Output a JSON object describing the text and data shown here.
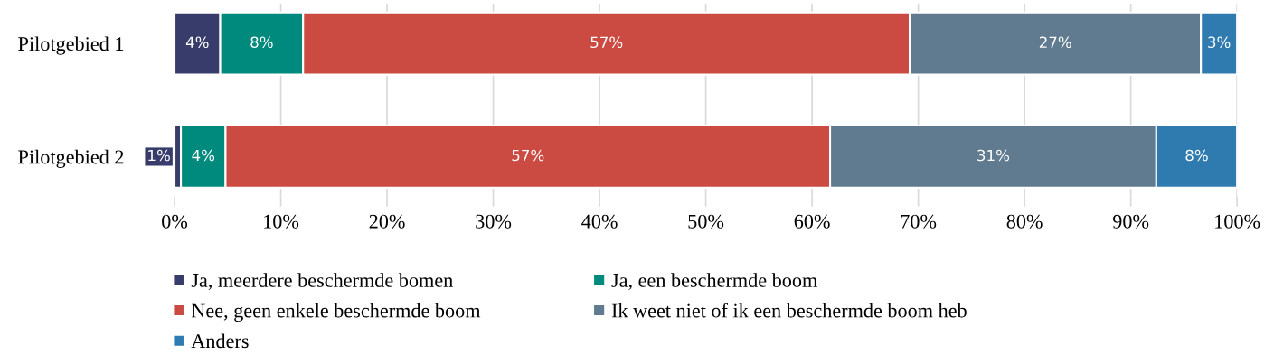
{
  "chart_data": {
    "type": "bar",
    "orientation": "horizontal",
    "stacked": true,
    "categories": [
      "Pilotgebied 1",
      "Pilotgebied 2"
    ],
    "series": [
      {
        "name": "Ja, meerdere beschermde bomen",
        "color": "#383c6a",
        "values": [
          4.3,
          0.6
        ],
        "value_labels": [
          "4%",
          "1%"
        ]
      },
      {
        "name": "Ja, een beschermde boom",
        "color": "#008a7d",
        "values": [
          7.8,
          4.2
        ],
        "value_labels": [
          "8%",
          "4%"
        ]
      },
      {
        "name": "Nee, geen enkele beschermde boom",
        "color": "#cb4b43",
        "values": [
          57.1,
          56.9
        ],
        "value_labels": [
          "57%",
          "57%"
        ]
      },
      {
        "name": "Ik weet niet of ik een beschermde boom heb",
        "color": "#607b8f",
        "values": [
          27.4,
          30.7
        ],
        "value_labels": [
          "27%",
          "31%"
        ]
      },
      {
        "name": "Anders",
        "color": "#2f7bb0",
        "values": [
          3.4,
          7.6
        ],
        "value_labels": [
          "3%",
          "8%"
        ]
      }
    ],
    "xlim": [
      0,
      100
    ],
    "xticks": [
      {
        "value": 0,
        "label": "0%"
      },
      {
        "value": 10,
        "label": "10%"
      },
      {
        "value": 20,
        "label": "20%"
      },
      {
        "value": 30,
        "label": "30%"
      },
      {
        "value": 40,
        "label": "40%"
      },
      {
        "value": 50,
        "label": "50%"
      },
      {
        "value": 60,
        "label": "60%"
      },
      {
        "value": 70,
        "label": "70%"
      },
      {
        "value": 80,
        "label": "80%"
      },
      {
        "value": 90,
        "label": "90%"
      },
      {
        "value": 100,
        "label": "100%"
      }
    ],
    "grid": "x",
    "legend": "bottom"
  }
}
